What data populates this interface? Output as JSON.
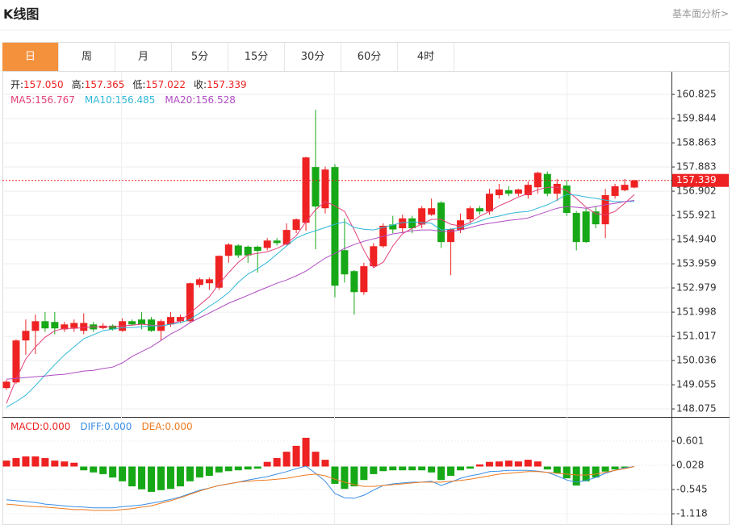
{
  "header": {
    "title": "K线图",
    "link": "基本面分析>"
  },
  "tabs": [
    "日",
    "周",
    "月",
    "5分",
    "15分",
    "30分",
    "60分",
    "4时"
  ],
  "active_tab": 0,
  "chart_data": [
    {
      "type": "candlestick",
      "info": [
        {
          "label": "开:",
          "text": "157.050"
        },
        {
          "label": "高:",
          "text": "157.365"
        },
        {
          "label": "低:",
          "text": "157.022"
        },
        {
          "label": "收:",
          "text": "157.339"
        }
      ],
      "ylim": [
        147.75,
        161.71
      ],
      "yticks": [
        160.825,
        159.844,
        158.863,
        157.883,
        156.902,
        155.921,
        {
          "value": 154.94,
          "label": "154.940"
        },
        153.959,
        152.979,
        151.998,
        151.017,
        150.036,
        149.055,
        148.075
      ],
      "grid": true,
      "up_color": "#ee2222",
      "down_color": "#16a816",
      "candles": {
        "open": [
          148.92,
          149.15,
          150.85,
          151.24,
          151.63,
          151.6,
          151.3,
          151.36,
          151.24,
          151.5,
          151.35,
          151.45,
          151.24,
          151.63,
          151.7,
          151.7,
          151.24,
          151.5,
          151.63,
          151.63,
          153.1,
          153.17,
          152.99,
          154.28,
          154.7,
          154.65,
          154.65,
          154.6,
          154.9,
          154.74,
          155.33,
          155.62,
          157.88,
          156.21,
          157.88,
          154.51,
          153.66,
          152.81,
          153.86,
          154.67,
          155.55,
          155.4,
          155.8,
          155.55,
          155.95,
          156.44,
          154.84,
          155.33,
          155.76,
          156.21,
          156.08,
          156.74,
          156.94,
          156.8,
          156.74,
          157.06,
          157.6,
          156.8,
          157.13,
          156.02,
          156.08,
          156.08,
          155.56,
          156.71,
          156.94,
          157.05
        ],
        "high": [
          149.25,
          150.9,
          151.7,
          151.9,
          152.0,
          152.0,
          151.6,
          151.7,
          151.95,
          151.6,
          151.55,
          151.5,
          151.75,
          151.7,
          152.0,
          151.8,
          151.7,
          152.0,
          151.9,
          153.2,
          153.4,
          153.4,
          154.3,
          154.8,
          154.75,
          154.7,
          154.7,
          155.0,
          155.0,
          155.6,
          155.8,
          158.3,
          160.2,
          157.9,
          158.0,
          155.8,
          153.7,
          154.0,
          154.8,
          155.6,
          155.9,
          155.95,
          155.9,
          156.3,
          156.6,
          156.5,
          155.4,
          156.0,
          156.3,
          156.3,
          157.0,
          157.2,
          157.1,
          157.0,
          157.3,
          157.7,
          157.7,
          157.4,
          157.35,
          156.1,
          156.2,
          156.3,
          157.0,
          157.2,
          157.4,
          157.365
        ],
        "low": [
          148.85,
          149.1,
          150.27,
          150.3,
          151.2,
          151.1,
          151.2,
          151.2,
          151.1,
          151.2,
          151.3,
          151.25,
          151.2,
          151.45,
          151.3,
          151.2,
          150.85,
          151.4,
          151.55,
          151.55,
          153.0,
          152.9,
          152.9,
          154.0,
          154.2,
          154.0,
          153.6,
          154.5,
          154.7,
          154.7,
          155.2,
          155.3,
          154.55,
          156.0,
          152.6,
          153.2,
          151.9,
          152.7,
          153.8,
          154.6,
          155.2,
          155.2,
          155.2,
          155.4,
          155.9,
          154.6,
          153.5,
          155.2,
          155.6,
          155.95,
          155.95,
          156.6,
          156.7,
          156.7,
          156.6,
          156.8,
          156.7,
          156.5,
          155.9,
          154.5,
          154.8,
          155.4,
          155.0,
          156.6,
          156.9,
          157.022
        ],
        "close": [
          149.18,
          150.85,
          151.24,
          151.63,
          151.34,
          151.34,
          151.5,
          151.56,
          151.56,
          151.3,
          151.45,
          151.3,
          151.63,
          151.5,
          151.5,
          151.24,
          151.63,
          151.8,
          151.8,
          153.17,
          153.33,
          153.33,
          154.28,
          154.74,
          154.3,
          154.3,
          154.48,
          154.9,
          154.8,
          155.33,
          155.76,
          158.27,
          156.28,
          157.78,
          153.07,
          153.53,
          152.81,
          153.86,
          154.67,
          155.5,
          155.35,
          155.8,
          155.4,
          156.21,
          156.21,
          154.84,
          155.36,
          155.72,
          156.21,
          156.08,
          156.8,
          156.97,
          156.8,
          156.97,
          157.16,
          157.65,
          156.8,
          157.2,
          156.02,
          154.84,
          154.84,
          155.56,
          156.74,
          157.1,
          157.16,
          157.339
        ]
      },
      "series": [
        {
          "name": "MA5:",
          "value_label": "156.767",
          "color": "#e3407a",
          "values": [
            148.3,
            149.28,
            150.1,
            150.59,
            150.98,
            151.24,
            151.34,
            151.34,
            151.37,
            151.41,
            151.41,
            151.41,
            151.44,
            151.47,
            151.51,
            151.47,
            151.44,
            151.51,
            151.64,
            151.96,
            152.29,
            152.62,
            153.14,
            153.6,
            154.02,
            154.32,
            154.38,
            154.45,
            154.58,
            154.78,
            155.1,
            155.66,
            156.15,
            156.48,
            156.31,
            156.08,
            155.33,
            154.51,
            153.8,
            154.02,
            154.68,
            155.17,
            155.4,
            155.56,
            155.76,
            155.76,
            155.56,
            155.49,
            155.63,
            155.89,
            156.08,
            156.31,
            156.48,
            156.67,
            156.8,
            156.96,
            157.06,
            157.06,
            156.93,
            156.61,
            156.25,
            155.99,
            155.95,
            156.08,
            156.41,
            156.767
          ]
        },
        {
          "name": "MA10:",
          "value_label": "156.485",
          "color": "#2fb8d6",
          "values": [
            148.14,
            148.37,
            148.63,
            149.02,
            149.45,
            149.87,
            150.26,
            150.59,
            150.92,
            151.08,
            151.24,
            151.31,
            151.37,
            151.37,
            151.41,
            151.44,
            151.44,
            151.51,
            151.57,
            151.7,
            151.96,
            152.23,
            152.49,
            152.79,
            153.21,
            153.54,
            153.76,
            154.02,
            154.35,
            154.68,
            155.0,
            155.17,
            155.3,
            155.43,
            155.56,
            155.66,
            155.43,
            155.36,
            155.33,
            155.43,
            155.53,
            155.63,
            155.66,
            155.63,
            155.6,
            155.33,
            155.36,
            155.43,
            155.56,
            155.69,
            155.82,
            155.89,
            155.99,
            156.05,
            156.08,
            156.21,
            156.35,
            156.54,
            156.77,
            156.74,
            156.67,
            156.61,
            156.54,
            156.48,
            156.48,
            156.485
          ]
        },
        {
          "name": "MA20:",
          "value_label": "156.528",
          "color": "#b04cc4",
          "values": [
            149.28,
            149.31,
            149.35,
            149.38,
            149.41,
            149.45,
            149.48,
            149.54,
            149.61,
            149.64,
            149.71,
            149.77,
            149.94,
            150.2,
            150.4,
            150.59,
            150.85,
            151.11,
            151.31,
            151.57,
            151.77,
            151.96,
            152.16,
            152.36,
            152.52,
            152.68,
            152.85,
            153.01,
            153.17,
            153.3,
            153.47,
            153.66,
            153.93,
            154.19,
            154.38,
            154.58,
            154.74,
            154.87,
            154.97,
            155.07,
            155.17,
            155.23,
            155.3,
            155.33,
            155.33,
            155.27,
            155.27,
            155.33,
            155.43,
            155.53,
            155.6,
            155.66,
            155.72,
            155.76,
            155.82,
            155.95,
            156.08,
            156.21,
            156.28,
            156.25,
            156.21,
            156.28,
            156.35,
            156.41,
            156.48,
            156.528
          ]
        }
      ]
    },
    {
      "type": "macd",
      "ylim": [
        -1.385,
        1.117
      ],
      "yticks": [
        0.601,
        0.028,
        -0.545,
        -1.118
      ],
      "grid": true,
      "series": [
        {
          "name": "MACD:",
          "value_label": "0.000",
          "type": "bar",
          "color": "#ee2222",
          "down_color": "#16a816",
          "values": [
            0.14,
            0.2,
            0.24,
            0.24,
            0.2,
            0.14,
            0.12,
            0.09,
            -0.09,
            -0.14,
            -0.18,
            -0.26,
            -0.35,
            -0.47,
            -0.54,
            -0.6,
            -0.56,
            -0.53,
            -0.47,
            -0.35,
            -0.26,
            -0.22,
            -0.14,
            -0.11,
            -0.09,
            -0.07,
            -0.05,
            0.11,
            0.2,
            0.35,
            0.49,
            0.68,
            0.35,
            0.16,
            -0.41,
            -0.53,
            -0.47,
            -0.32,
            -0.18,
            -0.11,
            -0.09,
            -0.09,
            -0.09,
            -0.09,
            -0.14,
            -0.32,
            -0.22,
            -0.09,
            -0.05,
            0.05,
            0.11,
            0.12,
            0.14,
            0.12,
            0.16,
            0.12,
            -0.07,
            -0.16,
            -0.28,
            -0.45,
            -0.35,
            -0.26,
            -0.12,
            -0.07,
            -0.03,
            0
          ]
        },
        {
          "name": "DIFF:",
          "value_label": "0.000",
          "type": "line",
          "color": "#3a8ee6",
          "values": [
            -0.79,
            -0.81,
            -0.83,
            -0.85,
            -0.89,
            -0.91,
            -0.93,
            -0.95,
            -0.96,
            -0.98,
            -0.98,
            -0.98,
            -0.95,
            -0.93,
            -0.91,
            -0.87,
            -0.83,
            -0.78,
            -0.72,
            -0.64,
            -0.56,
            -0.51,
            -0.45,
            -0.41,
            -0.37,
            -0.32,
            -0.28,
            -0.24,
            -0.18,
            -0.12,
            -0.05,
            0.01,
            -0.16,
            -0.35,
            -0.64,
            -0.74,
            -0.75,
            -0.68,
            -0.56,
            -0.45,
            -0.41,
            -0.39,
            -0.37,
            -0.37,
            -0.35,
            -0.45,
            -0.37,
            -0.28,
            -0.22,
            -0.18,
            -0.12,
            -0.11,
            -0.09,
            -0.09,
            -0.09,
            -0.11,
            -0.14,
            -0.22,
            -0.32,
            -0.37,
            -0.33,
            -0.26,
            -0.16,
            -0.09,
            -0.03,
            0
          ]
        },
        {
          "name": "DEA:",
          "value_label": "0.000",
          "type": "line",
          "color": "#ef7a1e",
          "values": [
            -0.89,
            -0.91,
            -0.93,
            -0.95,
            -0.96,
            -0.98,
            -1.0,
            -1.02,
            -1.02,
            -1.04,
            -1.04,
            -1.04,
            -1.02,
            -1.0,
            -0.96,
            -0.93,
            -0.87,
            -0.81,
            -0.74,
            -0.66,
            -0.58,
            -0.51,
            -0.45,
            -0.41,
            -0.37,
            -0.35,
            -0.33,
            -0.32,
            -0.3,
            -0.28,
            -0.24,
            -0.2,
            -0.18,
            -0.22,
            -0.3,
            -0.37,
            -0.43,
            -0.47,
            -0.47,
            -0.45,
            -0.43,
            -0.41,
            -0.39,
            -0.37,
            -0.37,
            -0.37,
            -0.35,
            -0.33,
            -0.3,
            -0.26,
            -0.22,
            -0.18,
            -0.16,
            -0.14,
            -0.12,
            -0.12,
            -0.14,
            -0.16,
            -0.18,
            -0.2,
            -0.2,
            -0.18,
            -0.14,
            -0.09,
            -0.05,
            0
          ]
        }
      ]
    }
  ]
}
